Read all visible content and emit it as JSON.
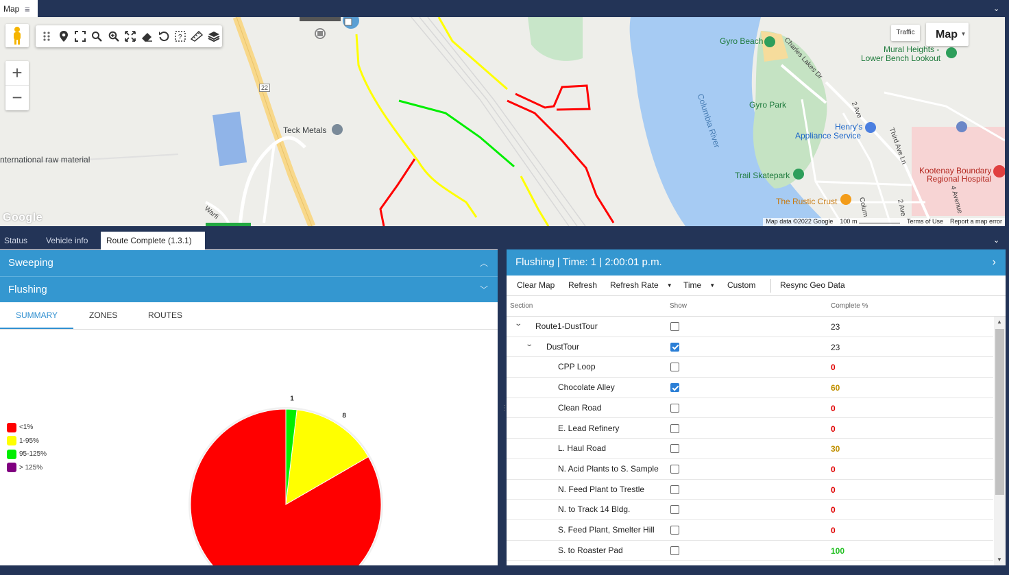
{
  "map_panel": {
    "tab_label": "Map",
    "traffic_label": "Traffic",
    "map_type_label": "Map",
    "google_logo": "Google",
    "labels": {
      "gyro_beach": "Gyro Beach",
      "mural_heights": "Mural Heights -",
      "lower_bench": "Lower Bench Lookout",
      "charles_lakes": "Charles Lakes Dr",
      "columbia_river": "Columbia River",
      "gyro_park": "Gyro Park",
      "second_ave": "2 Ave",
      "third_ave": "Third Ave Ln",
      "henrys": "Henry's",
      "appliance": "Appliance Service",
      "kootenay": "Kootenay Boundary",
      "regional": "Regional Hospital",
      "fourth_ave": "4 Avenue",
      "trail_skatepark": "Trail Skatepark",
      "rustic_crust": "The Rustic Crust",
      "teck_metals": "Teck Metals",
      "raw_material": "nternational raw material",
      "hwy": "22",
      "warfield": "Warfi",
      "columbia_short": "Colum",
      "second_ave_b": "2 Ave"
    },
    "footer": {
      "map_data": "Map data ©2022 Google",
      "scale": "100 m",
      "terms": "Terms of Use",
      "report": "Report a map error"
    }
  },
  "bottom_tabs": [
    {
      "label": "Status"
    },
    {
      "label": "Vehicle info"
    },
    {
      "label": "Route Complete (1.3.1)"
    }
  ],
  "left_panel": {
    "sweeping_label": "Sweeping",
    "flushing_label": "Flushing",
    "subtabs": [
      "SUMMARY",
      "ZONES",
      "ROUTES"
    ],
    "legend": [
      {
        "label": "<1%",
        "color": "#ff0000"
      },
      {
        "label": "1-95%",
        "color": "#ffff00"
      },
      {
        "label": "95-125%",
        "color": "#00ee00"
      },
      {
        "label": "> 125%",
        "color": "#800080"
      }
    ]
  },
  "chart_data": {
    "type": "pie",
    "slices": [
      {
        "label": "<1%",
        "value": 45,
        "color": "#ff0000"
      },
      {
        "label": "1-95%",
        "value": 8,
        "color": "#ffff00"
      },
      {
        "label": "95-125%",
        "value": 1,
        "color": "#00ee00"
      },
      {
        "label": "> 125%",
        "value": 0,
        "color": "#800080"
      }
    ],
    "legend_position": "left"
  },
  "right_panel": {
    "header": "Flushing | Time: 1 | 2:00:01 p.m.",
    "toolbar": {
      "clear_map": "Clear Map",
      "refresh": "Refresh",
      "refresh_rate": "Refresh Rate",
      "time": "Time",
      "custom": "Custom",
      "resync": "Resync Geo Data"
    },
    "columns": {
      "section": "Section",
      "show": "Show",
      "complete": "Complete %"
    },
    "rows": [
      {
        "name": "Route1-DustTour",
        "level": 0,
        "expandable": true,
        "checked": false,
        "pct": "23",
        "tone": "plain"
      },
      {
        "name": "DustTour",
        "level": 1,
        "expandable": true,
        "checked": true,
        "pct": "23",
        "tone": "plain"
      },
      {
        "name": "CPP Loop",
        "level": 2,
        "expandable": false,
        "checked": false,
        "pct": "0",
        "tone": "red"
      },
      {
        "name": "Chocolate Alley",
        "level": 2,
        "expandable": false,
        "checked": true,
        "pct": "60",
        "tone": "amber"
      },
      {
        "name": "Clean Road",
        "level": 2,
        "expandable": false,
        "checked": false,
        "pct": "0",
        "tone": "red"
      },
      {
        "name": "E. Lead Refinery",
        "level": 2,
        "expandable": false,
        "checked": false,
        "pct": "0",
        "tone": "red"
      },
      {
        "name": "L. Haul Road",
        "level": 2,
        "expandable": false,
        "checked": false,
        "pct": "30",
        "tone": "amber"
      },
      {
        "name": "N. Acid Plants to S. Sample",
        "level": 2,
        "expandable": false,
        "checked": false,
        "pct": "0",
        "tone": "red"
      },
      {
        "name": "N. Feed Plant to Trestle",
        "level": 2,
        "expandable": false,
        "checked": false,
        "pct": "0",
        "tone": "red"
      },
      {
        "name": "N. to Track 14 Bldg.",
        "level": 2,
        "expandable": false,
        "checked": false,
        "pct": "0",
        "tone": "red"
      },
      {
        "name": "S. Feed Plant, Smelter Hill",
        "level": 2,
        "expandable": false,
        "checked": false,
        "pct": "0",
        "tone": "red"
      },
      {
        "name": "S. to Roaster Pad",
        "level": 2,
        "expandable": false,
        "checked": false,
        "pct": "100",
        "tone": "green"
      }
    ]
  },
  "icons": {
    "menu": "hamburger-icon",
    "collapse": "chevron-down-icon",
    "pegman": "pegman-icon"
  }
}
